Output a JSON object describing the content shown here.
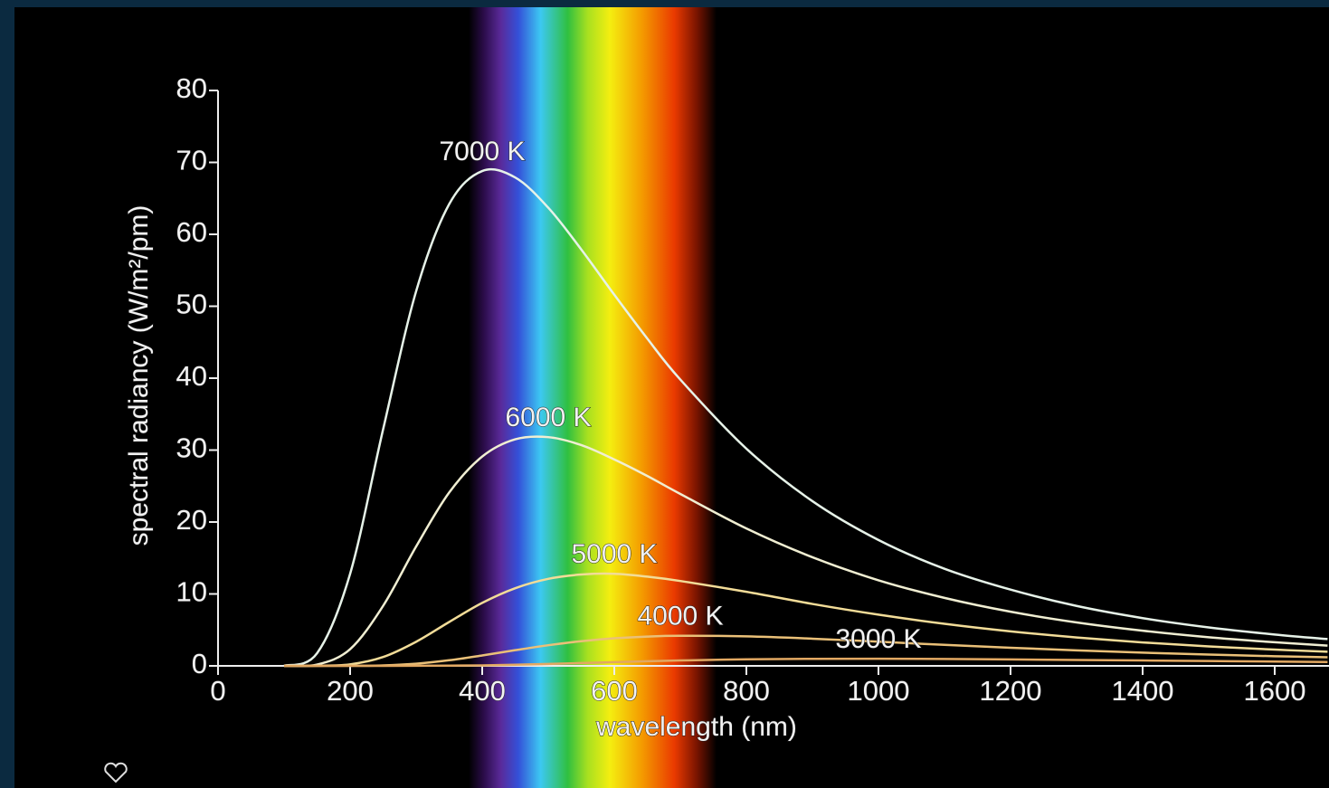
{
  "chart_data": {
    "type": "line",
    "x_label": "wavelength (nm)",
    "y_label": "spectral radiancy (W/m²/pm)",
    "x": [
      100,
      150,
      200,
      250,
      300,
      350,
      400,
      450,
      500,
      550,
      600,
      650,
      700,
      800,
      900,
      1000,
      1100,
      1200,
      1300,
      1400,
      1500,
      1600,
      1680
    ],
    "series": [
      {
        "name": "7000 K",
        "color": "#e6f2e8",
        "values": [
          0.01,
          1.76,
          12.8,
          32.9,
          52.1,
          64.2,
          68.8,
          67.9,
          63.7,
          57.9,
          51.6,
          45.5,
          39.8,
          30.2,
          22.9,
          17.5,
          13.5,
          10.6,
          8.33,
          6.64,
          5.35,
          4.36,
          3.72
        ]
      },
      {
        "name": "6000 K",
        "color": "#f0eed2",
        "values": [
          0,
          0.18,
          2.32,
          8.35,
          16.6,
          24.1,
          29.1,
          31.5,
          31.8,
          30.7,
          28.7,
          26.4,
          23.9,
          19.1,
          15.1,
          11.9,
          9.45,
          7.53,
          6.04,
          4.89,
          3.98,
          3.28,
          2.82
        ]
      },
      {
        "name": "5000 K",
        "color": "#f2dc98",
        "values": [
          0,
          0.01,
          0.21,
          1.23,
          3.35,
          6.1,
          8.76,
          10.8,
          12.1,
          12.7,
          12.8,
          12.4,
          11.8,
          10.3,
          8.61,
          7.12,
          5.85,
          4.8,
          3.95,
          3.26,
          2.71,
          2.26,
          1.96
        ]
      },
      {
        "name": "4000 K",
        "color": "#eac078",
        "values": [
          0,
          0,
          0.01,
          0.07,
          0.3,
          0.78,
          1.45,
          2.18,
          2.87,
          3.43,
          3.83,
          4.08,
          4.18,
          4.1,
          3.78,
          3.36,
          2.92,
          2.52,
          2.15,
          1.84,
          1.57,
          1.34,
          1.19
        ]
      },
      {
        "name": "3000 K",
        "color": "#e2a862",
        "values": [
          0,
          0,
          0,
          0,
          0.01,
          0.03,
          0.07,
          0.15,
          0.26,
          0.39,
          0.52,
          0.64,
          0.75,
          0.91,
          0.98,
          0.99,
          0.96,
          0.9,
          0.82,
          0.75,
          0.67,
          0.6,
          0.54
        ]
      }
    ],
    "xlim": [
      0,
      1680
    ],
    "ylim": [
      0,
      80
    ],
    "xticks": [
      0,
      200,
      400,
      600,
      800,
      1000,
      1200,
      1400,
      1600
    ],
    "yticks": [
      0,
      10,
      20,
      30,
      40,
      50,
      60,
      70,
      80
    ],
    "grid": false
  }
}
